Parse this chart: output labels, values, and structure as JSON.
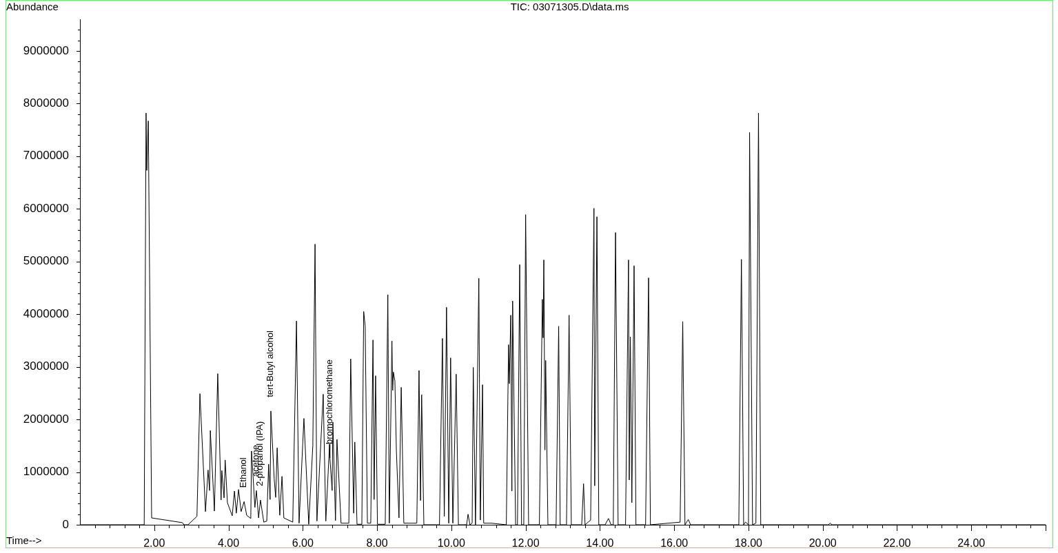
{
  "chart_data": {
    "type": "line",
    "title": "TIC: 03071305.D\\data.ms",
    "xlabel": "Time-->",
    "ylabel": "Abundance",
    "x": [
      0,
      1.73,
      1.78,
      1.8,
      1.84,
      1.93,
      2.76,
      2.8,
      2.91,
      3.15,
      3.23,
      3.38,
      3.45,
      3.49,
      3.51,
      3.62,
      3.71,
      3.8,
      3.82,
      3.88,
      3.91,
      3.97,
      4.1,
      4.16,
      4.21,
      4.27,
      4.34,
      4.42,
      4.49,
      4.6,
      4.62,
      4.71,
      4.75,
      4.81,
      4.86,
      4.95,
      5.03,
      5.08,
      5.12,
      5.14,
      5.23,
      5.27,
      5.31,
      5.38,
      5.44,
      5.49,
      5.73,
      5.83,
      5.9,
      6.03,
      6.16,
      6.27,
      6.33,
      6.38,
      6.55,
      6.62,
      6.72,
      6.73,
      6.79,
      6.81,
      6.88,
      6.92,
      7.03,
      7.24,
      7.29,
      7.37,
      7.4,
      7.46,
      7.59,
      7.64,
      7.68,
      7.74,
      7.83,
      7.89,
      7.92,
      7.96,
      8.01,
      8.22,
      8.29,
      8.33,
      8.4,
      8.42,
      8.44,
      8.48,
      8.52,
      8.59,
      8.65,
      8.72,
      9.07,
      9.13,
      9.17,
      9.2,
      9.26,
      9.68,
      9.76,
      9.81,
      9.87,
      9.93,
      9.98,
      10.04,
      10.13,
      10.19,
      10.41,
      10.45,
      10.5,
      10.56,
      10.59,
      10.65,
      10.74,
      10.78,
      10.84,
      10.87,
      11.08,
      11.48,
      11.54,
      11.56,
      11.6,
      11.63,
      11.65,
      11.73,
      11.78,
      11.84,
      11.89,
      11.95,
      12.0,
      12.08,
      12.37,
      12.45,
      12.47,
      12.49,
      12.52,
      12.54,
      12.6,
      12.82,
      12.89,
      12.93,
      13.1,
      13.17,
      13.23,
      13.51,
      13.56,
      13.6,
      13.75,
      13.84,
      13.86,
      13.92,
      13.97,
      14.14,
      14.23,
      14.3,
      14.36,
      14.42,
      14.49,
      14.69,
      14.77,
      14.79,
      14.82,
      14.86,
      14.92,
      14.97,
      15.23,
      15.31,
      15.36,
      16.16,
      16.23,
      16.29,
      16.38,
      16.44,
      17.74,
      17.81,
      17.87,
      17.92,
      18.0,
      18.03,
      18.11,
      18.2,
      18.27,
      18.33,
      20.15,
      20.2,
      20.25,
      26.0
    ],
    "series": [
      {
        "color": "#000000",
        "values": [
          0,
          0,
          7820000,
          6730000,
          7670000,
          130000,
          40000,
          0,
          0,
          160000,
          2490000,
          250000,
          1040000,
          650000,
          1790000,
          260000,
          2870000,
          470000,
          1030000,
          510000,
          1230000,
          420000,
          170000,
          640000,
          220000,
          670000,
          250000,
          440000,
          180000,
          120000,
          1400000,
          330000,
          650000,
          130000,
          470000,
          50000,
          70000,
          1150000,
          480000,
          2160000,
          870000,
          520000,
          1460000,
          180000,
          920000,
          130000,
          50000,
          3870000,
          30000,
          2020000,
          10000,
          1500000,
          5330000,
          70000,
          2480000,
          70000,
          1530000,
          1270000,
          650000,
          1950000,
          80000,
          1620000,
          30000,
          30000,
          3150000,
          220000,
          1570000,
          10000,
          10000,
          4050000,
          3770000,
          30000,
          30000,
          3510000,
          480000,
          2830000,
          10000,
          10000,
          4370000,
          30000,
          3490000,
          2550000,
          2900000,
          2730000,
          1400000,
          130000,
          2610000,
          30000,
          30000,
          2930000,
          460000,
          2470000,
          0,
          0,
          3540000,
          160000,
          4130000,
          30000,
          3170000,
          30000,
          2860000,
          0,
          0,
          200000,
          0,
          30000,
          2990000,
          0,
          4680000,
          90000,
          2660000,
          30000,
          30000,
          0,
          3420000,
          2680000,
          3980000,
          640000,
          4250000,
          0,
          0,
          4940000,
          0,
          0,
          5890000,
          0,
          0,
          4280000,
          3550000,
          5030000,
          1420000,
          3120000,
          0,
          0,
          3770000,
          0,
          0,
          3980000,
          0,
          0,
          780000,
          0,
          90000,
          6010000,
          740000,
          5850000,
          0,
          0,
          120000,
          0,
          0,
          5550000,
          0,
          0,
          5030000,
          850000,
          3570000,
          420000,
          4920000,
          0,
          0,
          4690000,
          0,
          50000,
          3860000,
          0,
          100000,
          0,
          0,
          5040000,
          0,
          50000,
          0,
          7450000,
          0,
          30000,
          7820000,
          0,
          0,
          30000,
          0,
          0
        ]
      }
    ],
    "xlim": [
      0,
      26
    ],
    "xticks": [
      {
        "value": 0.4,
        "label": null
      },
      {
        "value": 0.8,
        "label": null
      },
      {
        "value": 1.2,
        "label": null
      },
      {
        "value": 1.6,
        "label": null
      },
      {
        "value": 2,
        "label": "2.00"
      },
      {
        "value": 2.4,
        "label": null
      },
      {
        "value": 2.8,
        "label": null
      },
      {
        "value": 3.2,
        "label": null
      },
      {
        "value": 3.6,
        "label": null
      },
      {
        "value": 4,
        "label": "4.00"
      },
      {
        "value": 4.4,
        "label": null
      },
      {
        "value": 4.8,
        "label": null
      },
      {
        "value": 5.2,
        "label": null
      },
      {
        "value": 5.6,
        "label": null
      },
      {
        "value": 6,
        "label": "6.00"
      },
      {
        "value": 6.4,
        "label": null
      },
      {
        "value": 6.8,
        "label": null
      },
      {
        "value": 7.2,
        "label": null
      },
      {
        "value": 7.6,
        "label": null
      },
      {
        "value": 8,
        "label": "8.00"
      },
      {
        "value": 8.4,
        "label": null
      },
      {
        "value": 8.8,
        "label": null
      },
      {
        "value": 9.2,
        "label": null
      },
      {
        "value": 9.6,
        "label": null
      },
      {
        "value": 10,
        "label": "10.00"
      },
      {
        "value": 10.4,
        "label": null
      },
      {
        "value": 10.8,
        "label": null
      },
      {
        "value": 11.2,
        "label": null
      },
      {
        "value": 11.6,
        "label": null
      },
      {
        "value": 12,
        "label": "12.00"
      },
      {
        "value": 12.4,
        "label": null
      },
      {
        "value": 12.8,
        "label": null
      },
      {
        "value": 13.2,
        "label": null
      },
      {
        "value": 13.6,
        "label": null
      },
      {
        "value": 14,
        "label": "14.00"
      },
      {
        "value": 14.4,
        "label": null
      },
      {
        "value": 14.8,
        "label": null
      },
      {
        "value": 15.2,
        "label": null
      },
      {
        "value": 15.6,
        "label": null
      },
      {
        "value": 16,
        "label": "16.00"
      },
      {
        "value": 16.4,
        "label": null
      },
      {
        "value": 16.8,
        "label": null
      },
      {
        "value": 17.2,
        "label": null
      },
      {
        "value": 17.6,
        "label": null
      },
      {
        "value": 18,
        "label": "18.00"
      },
      {
        "value": 18.4,
        "label": null
      },
      {
        "value": 18.8,
        "label": null
      },
      {
        "value": 19.2,
        "label": null
      },
      {
        "value": 19.6,
        "label": null
      },
      {
        "value": 20,
        "label": "20.00"
      },
      {
        "value": 20.4,
        "label": null
      },
      {
        "value": 20.8,
        "label": null
      },
      {
        "value": 21.2,
        "label": null
      },
      {
        "value": 21.6,
        "label": null
      },
      {
        "value": 22,
        "label": "22.00"
      },
      {
        "value": 22.4,
        "label": null
      },
      {
        "value": 22.8,
        "label": null
      },
      {
        "value": 23.2,
        "label": null
      },
      {
        "value": 23.6,
        "label": null
      },
      {
        "value": 24,
        "label": "24.00"
      },
      {
        "value": 24.4,
        "label": null
      },
      {
        "value": 24.8,
        "label": null
      },
      {
        "value": 25.2,
        "label": null
      },
      {
        "value": 25.6,
        "label": null
      },
      {
        "value": 26,
        "label": null
      }
    ],
    "ylim": [
      0,
      9600000
    ],
    "yticks": [
      0,
      {
        "value": 200000,
        "label": null
      },
      {
        "value": 400000,
        "label": null
      },
      {
        "value": 600000,
        "label": null
      },
      {
        "value": 800000,
        "label": null
      },
      1000000,
      {
        "value": 1200000,
        "label": null
      },
      {
        "value": 1400000,
        "label": null
      },
      {
        "value": 1600000,
        "label": null
      },
      {
        "value": 1800000,
        "label": null
      },
      2000000,
      {
        "value": 2200000,
        "label": null
      },
      {
        "value": 2400000,
        "label": null
      },
      {
        "value": 2600000,
        "label": null
      },
      {
        "value": 2800000,
        "label": null
      },
      3000000,
      {
        "value": 3200000,
        "label": null
      },
      {
        "value": 3400000,
        "label": null
      },
      {
        "value": 3600000,
        "label": null
      },
      {
        "value": 3800000,
        "label": null
      },
      4000000,
      {
        "value": 4200000,
        "label": null
      },
      {
        "value": 4400000,
        "label": null
      },
      {
        "value": 4600000,
        "label": null
      },
      {
        "value": 4800000,
        "label": null
      },
      5000000,
      {
        "value": 5200000,
        "label": null
      },
      {
        "value": 5400000,
        "label": null
      },
      {
        "value": 5600000,
        "label": null
      },
      {
        "value": 5800000,
        "label": null
      },
      6000000,
      {
        "value": 6200000,
        "label": null
      },
      {
        "value": 6400000,
        "label": null
      },
      {
        "value": 6600000,
        "label": null
      },
      {
        "value": 6800000,
        "label": null
      },
      7000000,
      {
        "value": 7200000,
        "label": null
      },
      {
        "value": 7400000,
        "label": null
      },
      {
        "value": 7600000,
        "label": null
      },
      {
        "value": 7800000,
        "label": null
      },
      8000000,
      {
        "value": 8200000,
        "label": null
      },
      {
        "value": 8400000,
        "label": null
      },
      {
        "value": 8600000,
        "label": null
      },
      {
        "value": 8800000,
        "label": null
      },
      9000000,
      {
        "value": 9200000,
        "label": null
      },
      {
        "value": 9400000,
        "label": null
      }
    ],
    "annotations": [
      {
        "text": "Ethanol",
        "x": 4.42,
        "y": 440000
      },
      {
        "text": "acetone",
        "x": 4.75,
        "y": 650000
      },
      {
        "text": "2-propanol (IPA)",
        "x": 4.86,
        "y": 470000
      },
      {
        "text": "tert-Butyl alcohol",
        "x": 5.14,
        "y": 2160000
      },
      {
        "text": "bromochloromethane",
        "x": 6.73,
        "y": 1270000
      }
    ]
  }
}
